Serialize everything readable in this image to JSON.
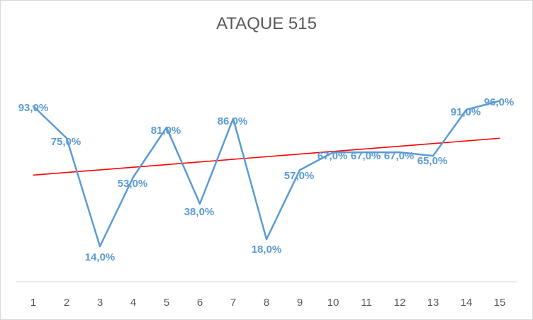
{
  "chart_data": {
    "type": "line",
    "title": "ATAQUE 515",
    "x": [
      1,
      2,
      3,
      4,
      5,
      6,
      7,
      8,
      9,
      10,
      11,
      12,
      13,
      14,
      15
    ],
    "series": [
      {
        "values": [
          93,
          75,
          14,
          53,
          81,
          38,
          86,
          18,
          57,
          67,
          67,
          67,
          65,
          91,
          96
        ],
        "color": "#5b9bd5"
      }
    ],
    "data_labels": [
      "93,0%",
      "75,0%",
      "14,0%",
      "53,0%",
      "81,0%",
      "38,0%",
      "86,0%",
      "18,0%",
      "57,0%",
      "67,0%",
      "67,0%",
      "67,0%",
      "65,0%",
      "91,0%",
      "96,0%"
    ],
    "trendline": {
      "type": "linear",
      "color": "#ff0000"
    },
    "axis_color": "#d9d9d9",
    "grid": false,
    "legend": "none"
  }
}
